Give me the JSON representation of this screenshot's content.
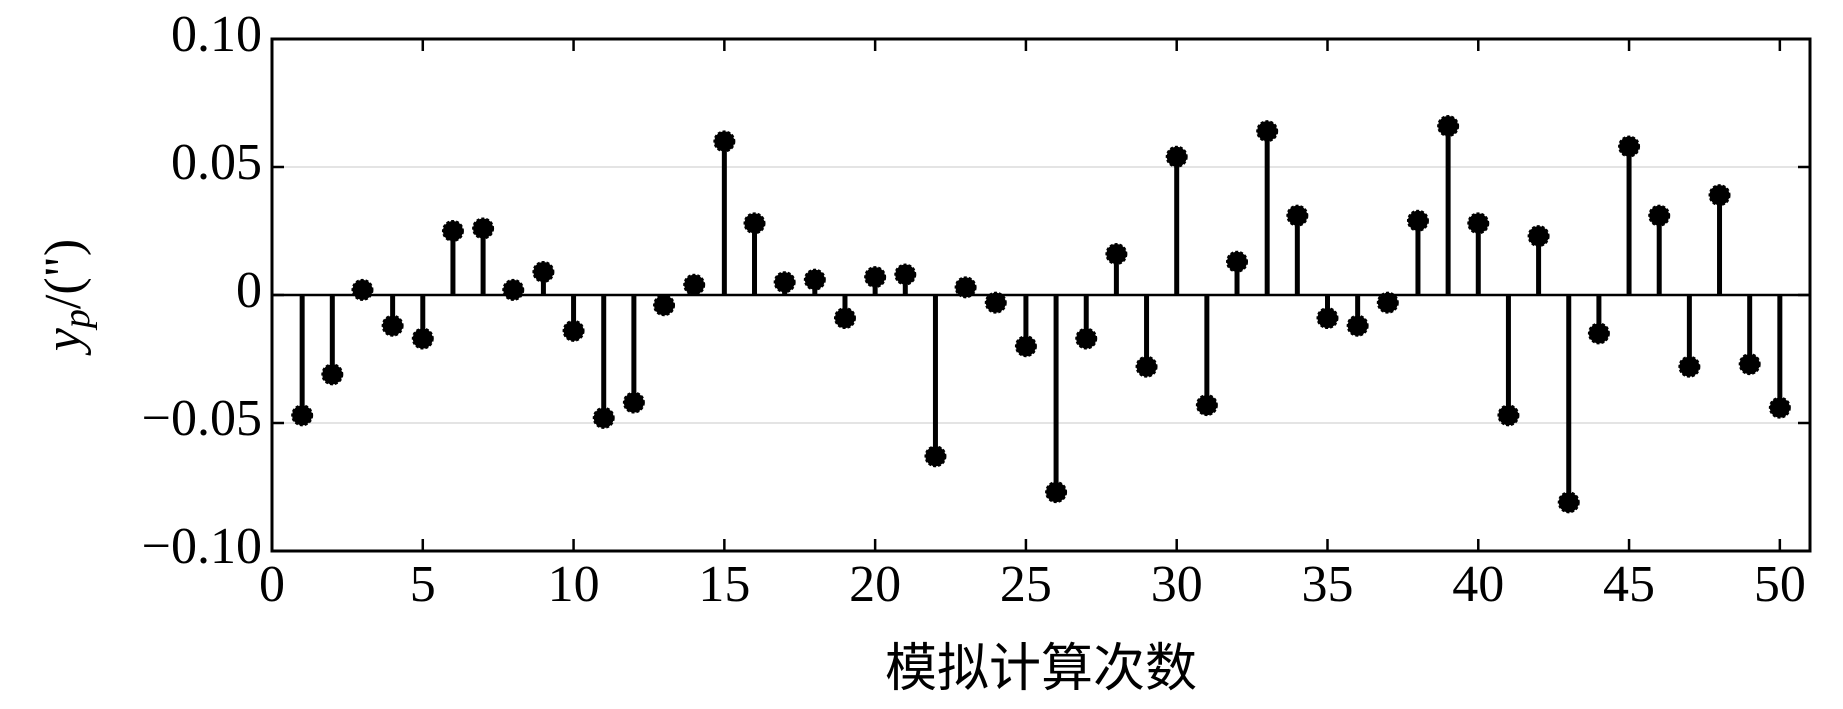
{
  "chart_data": {
    "type": "stem",
    "ylabel": [
      "y",
      "p",
      "/(\")"
    ],
    "xlabel": "模拟计算次数",
    "x": [
      1,
      2,
      3,
      4,
      5,
      6,
      7,
      8,
      9,
      10,
      11,
      12,
      13,
      14,
      15,
      16,
      17,
      18,
      19,
      20,
      21,
      22,
      23,
      24,
      25,
      26,
      27,
      28,
      29,
      30,
      31,
      32,
      33,
      34,
      35,
      36,
      37,
      38,
      39,
      40,
      41,
      42,
      43,
      44,
      45,
      46,
      47,
      48,
      49,
      50
    ],
    "values": [
      -0.047,
      -0.031,
      0.002,
      -0.012,
      -0.017,
      0.025,
      0.026,
      0.002,
      0.009,
      -0.014,
      -0.048,
      -0.042,
      -0.004,
      0.004,
      0.06,
      0.028,
      0.005,
      0.006,
      -0.009,
      0.007,
      0.008,
      -0.063,
      0.003,
      -0.003,
      -0.02,
      -0.077,
      -0.017,
      0.016,
      -0.028,
      0.054,
      -0.043,
      0.013,
      0.064,
      0.031,
      -0.009,
      -0.012,
      -0.003,
      0.029,
      0.066,
      0.028,
      -0.047,
      0.023,
      -0.081,
      -0.015,
      0.058,
      0.031,
      -0.028,
      0.039,
      -0.027,
      -0.044
    ],
    "color": "#000000",
    "xlim": [
      0,
      51
    ],
    "xticks": [
      0,
      5,
      10,
      15,
      20,
      25,
      30,
      35,
      40,
      45,
      50
    ],
    "ylim": [
      -0.1,
      0.1
    ],
    "yticks": [
      {
        "value": -0.1,
        "label": "−0.10"
      },
      {
        "value": -0.05,
        "label": "−0.05"
      },
      0,
      {
        "value": 0.05,
        "label": "0.05"
      },
      {
        "value": 0.1,
        "label": "0.10"
      }
    ],
    "grid": true
  }
}
